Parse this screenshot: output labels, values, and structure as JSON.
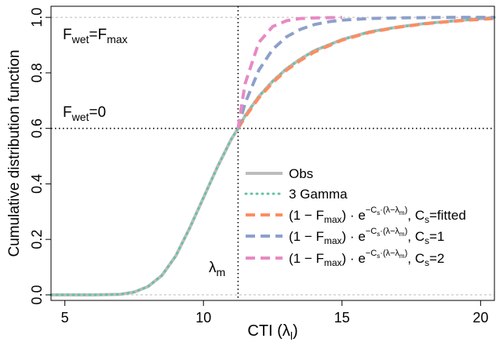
{
  "chart_data": {
    "type": "line",
    "xlabel": "CTI (λ",
    "xlabel_sub": "l",
    "xlabel_close": ")",
    "ylabel": "Cumulative distribution function",
    "xlim": [
      4.5,
      20.5
    ],
    "ylim": [
      -0.02,
      1.04
    ],
    "x_ticks": [
      5,
      10,
      15,
      20
    ],
    "y_ticks": [
      0.0,
      0.2,
      0.4,
      0.6,
      0.8,
      1.0
    ],
    "x_tick_labels": [
      "5",
      "10",
      "15",
      "20"
    ],
    "y_tick_labels": [
      "0.0",
      "0.2",
      "0.4",
      "0.6",
      "0.8",
      "1.0"
    ],
    "lambda_m": 11.25,
    "F_threshold": 0.6,
    "annotations": {
      "fwet_fmax": {
        "main": "F",
        "sub1": "wet",
        "eq": "=F",
        "sub2": "max"
      },
      "fwet_zero": {
        "main": "F",
        "sub1": "wet",
        "eq": "=0"
      },
      "lambda_m": {
        "main": "λ",
        "sub": "m"
      }
    },
    "legend": {
      "position": "bottom-right",
      "entries": [
        {
          "name": "Obs",
          "color": "#bdbdbd",
          "style": "solid"
        },
        {
          "name": "3 Gamma",
          "color": "#66c2a5",
          "style": "dotted"
        },
        {
          "name": "(1 − F_max) · e^(−C_s·(λ−λ_m)), C_s=fitted",
          "label_tail": ", C",
          "label_sub": "s",
          "label_end": "=fitted",
          "color": "#fc8d62",
          "style": "dashed"
        },
        {
          "name": "(1 − F_max) · e^(−C_s·(λ−λ_m)), C_s=1",
          "label_tail": ", C",
          "label_sub": "s",
          "label_end": "=1",
          "color": "#8da0cb",
          "style": "dashed"
        },
        {
          "name": "(1 − F_max) · e^(−C_s·(λ−λ_m)), C_s=2",
          "label_tail": ", C",
          "label_sub": "s",
          "label_end": "=2",
          "color": "#e78ac3",
          "style": "dashed"
        }
      ]
    },
    "series": [
      {
        "name": "Obs",
        "color": "#bdbdbd",
        "x": [
          4.5,
          5,
          6,
          7,
          7.5,
          8,
          8.5,
          9,
          9.5,
          10,
          10.5,
          11,
          11.25,
          11.5,
          12,
          12.5,
          13,
          13.5,
          14,
          15,
          16,
          17,
          18,
          19,
          20,
          20.5
        ],
        "y": [
          0.0,
          0.0,
          0.0,
          0.002,
          0.01,
          0.03,
          0.07,
          0.14,
          0.24,
          0.35,
          0.46,
          0.56,
          0.6,
          0.645,
          0.715,
          0.77,
          0.815,
          0.85,
          0.88,
          0.92,
          0.948,
          0.965,
          0.978,
          0.987,
          0.995,
          1.0
        ]
      },
      {
        "name": "3 Gamma",
        "color": "#66c2a5",
        "x": [
          4.5,
          5,
          6,
          7,
          7.5,
          8,
          8.5,
          9,
          9.5,
          10,
          10.5,
          11,
          11.25,
          11.5,
          12,
          12.5,
          13,
          13.5,
          14,
          15,
          16,
          17,
          18,
          19,
          20,
          20.5
        ],
        "y": [
          0.0,
          0.0,
          0.0,
          0.002,
          0.01,
          0.03,
          0.07,
          0.14,
          0.24,
          0.35,
          0.46,
          0.56,
          0.6,
          0.645,
          0.715,
          0.77,
          0.815,
          0.85,
          0.88,
          0.92,
          0.948,
          0.965,
          0.978,
          0.987,
          0.995,
          1.0
        ]
      },
      {
        "name": "C_s=fitted",
        "color": "#fc8d62",
        "x": [
          11.25,
          11.5,
          12,
          12.5,
          13,
          13.5,
          14,
          15,
          16,
          17,
          18,
          19,
          20,
          20.5
        ],
        "y": [
          0.6,
          0.64,
          0.71,
          0.765,
          0.81,
          0.845,
          0.875,
          0.918,
          0.946,
          0.964,
          0.977,
          0.986,
          0.993,
          0.996
        ]
      },
      {
        "name": "C_s=1",
        "color": "#8da0cb",
        "x": [
          11.25,
          11.5,
          12,
          12.5,
          13,
          13.5,
          14,
          14.5,
          15,
          16,
          17,
          18,
          19,
          20,
          20.5
        ],
        "y": [
          0.6,
          0.69,
          0.81,
          0.885,
          0.93,
          0.957,
          0.974,
          0.984,
          0.99,
          0.996,
          0.998,
          0.999,
          1.0,
          1.0,
          1.0
        ]
      },
      {
        "name": "C_s=2",
        "color": "#e78ac3",
        "x": [
          11.25,
          11.5,
          12,
          12.5,
          13,
          13.5,
          14,
          14.5,
          15
        ],
        "y": [
          0.6,
          0.76,
          0.91,
          0.967,
          0.988,
          0.996,
          0.998,
          0.999,
          1.0
        ]
      }
    ]
  }
}
